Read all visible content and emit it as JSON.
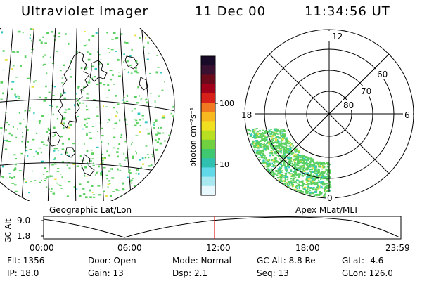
{
  "header": {
    "instrument": "Ultraviolet Imager",
    "date": "11 Dec 00",
    "time": "11:34:56 UT"
  },
  "colorbar": {
    "unit_label": "photon cm⁻²s⁻¹",
    "ticks": [
      "100",
      "10"
    ],
    "colors": [
      "#1a0a2a",
      "#3a1030",
      "#6a0a1a",
      "#a0001a",
      "#d8201a",
      "#f07820",
      "#f8b820",
      "#f0e020",
      "#b8e020",
      "#70d040",
      "#40c870",
      "#30c0b0",
      "#60d8e8",
      "#a8e8f0",
      "#e8f8ff"
    ]
  },
  "geo_map": {
    "label": "Geographic Lat/Lon",
    "auroral_color": "#5ad060",
    "highlight_colors": [
      "#30c8c0",
      "#e8e040"
    ]
  },
  "polar_map": {
    "label": "Apex MLat/MLT",
    "mlt_labels": {
      "top": "12",
      "left": "18",
      "right": "6",
      "bottom": "0"
    },
    "lat_labels": [
      "60",
      "70",
      "80"
    ]
  },
  "timeline": {
    "y_axis_title": "GC Alt",
    "y_ticks": [
      "9.0",
      "1.8"
    ],
    "x_ticks": [
      "00:00",
      "06:00",
      "12:00",
      "18:00",
      "23:59"
    ],
    "current_marker_color": "#e02020"
  },
  "status": {
    "flt": "Flt: 1356",
    "door": "Door: Open",
    "mode": "Mode: Normal",
    "gc_alt": "GC Alt: 8.8 Re",
    "glat": "GLat:   -4.6",
    "ip": "IP: 18.0",
    "gain": "Gain: 13",
    "dsp": "Dsp:     2.1",
    "seq": "Seq: 13",
    "glon": "GLon: 126.0"
  }
}
